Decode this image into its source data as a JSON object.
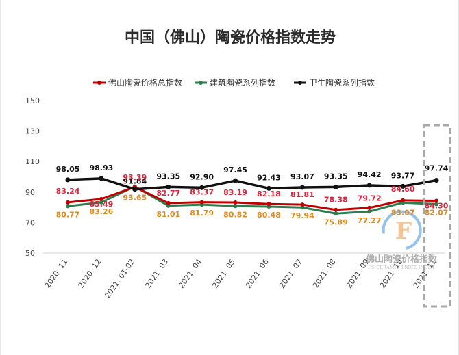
{
  "chart_data": {
    "type": "line",
    "title": "中国（佛山）陶瓷价格指数走势",
    "categories": [
      "2020. 11",
      "2020. 12",
      "2021. 01-02",
      "2021. 03",
      "2021. 04",
      "2021. 05",
      "2021. 06",
      "2021. 07",
      "2021. 08",
      "2021. 09",
      "2021. 10",
      "2021. 11"
    ],
    "ylim": [
      50,
      150
    ],
    "yticks": [
      50,
      70,
      90,
      110,
      130,
      150
    ],
    "ytick_labels": [
      "50",
      "70",
      "90",
      "110",
      "130",
      "150"
    ],
    "grid": false,
    "legend_position": "top",
    "series": [
      {
        "name": "佛山陶瓷价格总指数",
        "color": "#c00000",
        "label_color": "#e0203a",
        "values": [
          83.24,
          85.49,
          93.39,
          82.77,
          83.37,
          83.19,
          82.18,
          81.81,
          78.38,
          79.72,
          84.6,
          84.3
        ],
        "labels": [
          "83.24",
          "85.49",
          "93.39",
          "82.77",
          "83.37",
          "83.19",
          "82.18",
          "81.81",
          "78.38",
          "79.72",
          "84.60",
          "84.30"
        ]
      },
      {
        "name": "建筑陶瓷系列指数",
        "color": "#2e7d4f",
        "label_color": "#e08a1e",
        "values": [
          80.77,
          83.26,
          93.65,
          81.01,
          81.79,
          80.82,
          80.48,
          79.94,
          75.89,
          77.27,
          83.07,
          82.07
        ],
        "labels": [
          "80.77",
          "83.26",
          "93.65",
          "81.01",
          "81.79",
          "80.82",
          "80.48",
          "79.94",
          "75.89",
          "77.27",
          "83.07",
          "82.07"
        ]
      },
      {
        "name": "卫生陶瓷系列指数",
        "color": "#111111",
        "label_color": "#111111",
        "values": [
          98.05,
          98.93,
          91.84,
          93.35,
          92.9,
          97.45,
          92.43,
          93.07,
          93.35,
          94.42,
          93.77,
          97.74
        ],
        "labels": [
          "98.05",
          "98.93",
          "91.84",
          "93.35",
          "92.90",
          "97.45",
          "92.43",
          "93.07",
          "93.35",
          "94.42",
          "93.77",
          "97.74"
        ]
      }
    ]
  },
  "watermark": {
    "cn": "佛山陶瓷价格指数",
    "en": "FS CERAMIC PRICE INDEX",
    "accent_color": "#3a8fd8"
  },
  "highlight_box_color": "#a8a8a8"
}
